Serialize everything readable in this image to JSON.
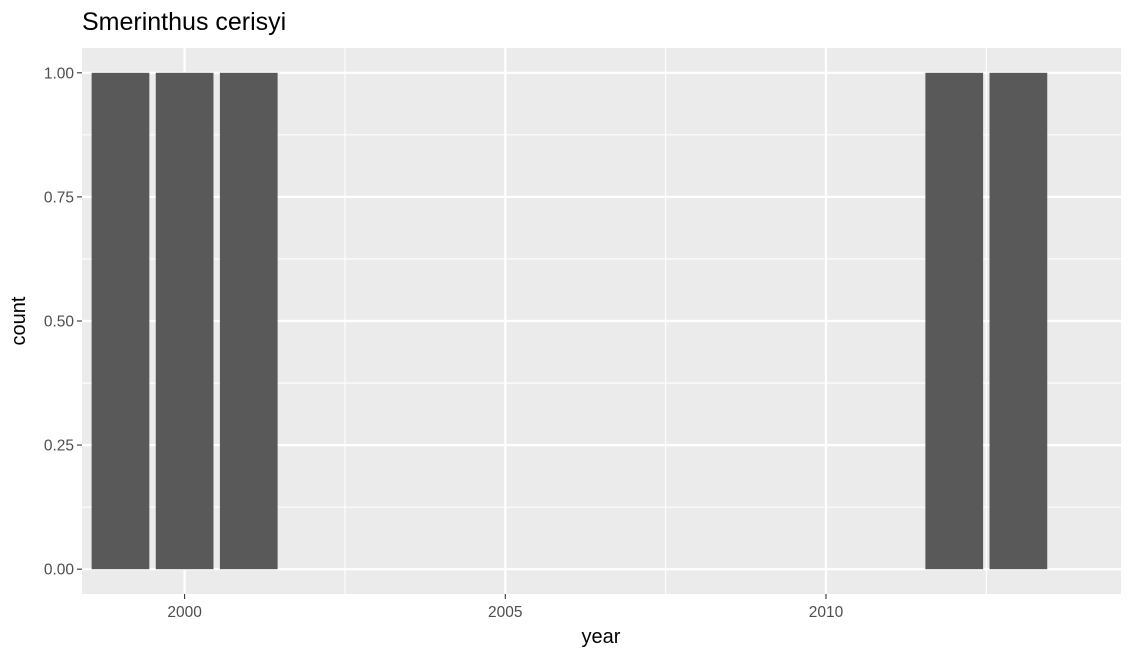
{
  "chart_data": {
    "type": "bar",
    "title": "Smerinthus cerisyi",
    "xlabel": "year",
    "ylabel": "count",
    "x": [
      1999,
      2000,
      2001,
      2012,
      2013
    ],
    "values": [
      1,
      1,
      1,
      1,
      1
    ],
    "xlim": [
      1998.4,
      2014.6
    ],
    "ylim": [
      -0.05,
      1.05
    ],
    "x_ticks": [
      "2000",
      "2005",
      "2010"
    ],
    "y_ticks": [
      "0.00",
      "0.25",
      "0.50",
      "0.75",
      "1.00"
    ],
    "grid": true,
    "colors": {
      "bar": "#595959",
      "panel": "#ebebeb",
      "grid": "#ffffff"
    }
  }
}
